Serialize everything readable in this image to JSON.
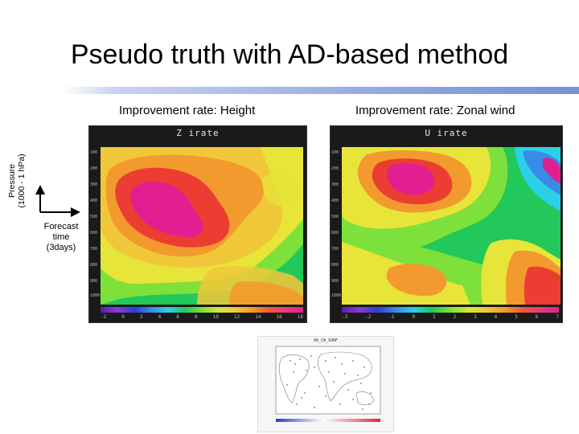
{
  "title": "Pseudo truth with AD-based method",
  "left_panel": {
    "caption": "Improvement rate: Height",
    "header": "Z irate",
    "yticks": [
      "100",
      "200",
      "300",
      "400",
      "500",
      "600",
      "700",
      "800",
      "900",
      "1000"
    ],
    "colorbar_labels": [
      "-2",
      "0",
      "2",
      "4",
      "6",
      "8",
      "10",
      "12",
      "14",
      "16",
      "18"
    ]
  },
  "right_panel": {
    "caption": "Improvement rate: Zonal wind",
    "header": "U irate",
    "yticks": [
      "100",
      "200",
      "300",
      "400",
      "500",
      "600",
      "700",
      "800",
      "900",
      "1000"
    ],
    "colorbar_labels": [
      "-3",
      "-2",
      "-1",
      "0",
      "1",
      "2",
      "3",
      "4",
      "5",
      "6",
      "7"
    ]
  },
  "y_axis_label": "Pressure\n(1000 - 1 hPa)",
  "x_axis_label": "Forecast\ntime\n(3days)",
  "map_inset": {
    "header": "00_CW_SURF"
  },
  "colors": {
    "title_rule": "#8da3df",
    "magenta": "#e21f90",
    "red": "#ec3d32",
    "orange": "#f39a2e",
    "yellow": "#e7e43a",
    "green": "#22c85a"
  }
}
